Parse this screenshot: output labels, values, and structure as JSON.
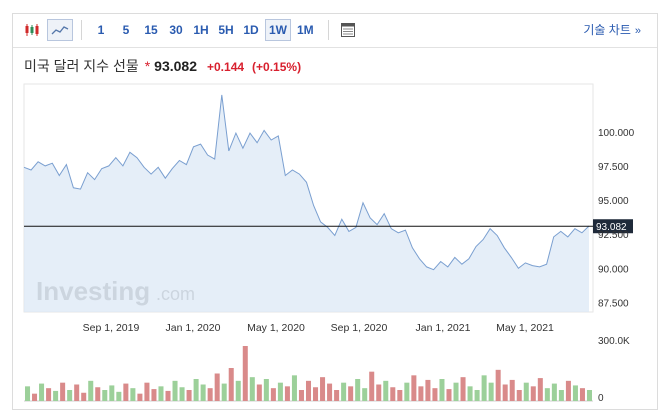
{
  "toolbar": {
    "intervals": [
      {
        "label": "1",
        "active": false
      },
      {
        "label": "5",
        "active": false
      },
      {
        "label": "15",
        "active": false
      },
      {
        "label": "30",
        "active": false
      },
      {
        "label": "1H",
        "active": false
      },
      {
        "label": "5H",
        "active": false
      },
      {
        "label": "1D",
        "active": false
      },
      {
        "label": "1W",
        "active": true
      },
      {
        "label": "1M",
        "active": false
      }
    ],
    "technical_chart_label": "기술 차트",
    "candlestick_icon": "candlestick-icon",
    "line_icon": "line-chart-icon",
    "table_icon": "table-icon"
  },
  "quote": {
    "name": "미국 달러 지수 선물",
    "price": "93.082",
    "change": "+0.144",
    "change_pct": "(+0.15%)",
    "change_color": "#d8202e"
  },
  "watermark": {
    "brand": "Investing",
    "suffix": ".com"
  },
  "chart_data": {
    "type": "area",
    "x_tick_labels": [
      "Sep 1, 2019",
      "Jan 1, 2020",
      "May 1, 2020",
      "Sep 1, 2020",
      "Jan 1, 2021",
      "May 1, 2021"
    ],
    "y_tick_labels": [
      "100.000",
      "97.500",
      "95.000",
      "92.500",
      "90.000",
      "87.500"
    ],
    "y_ticks": [
      100,
      97.5,
      95,
      92.5,
      90,
      87.5
    ],
    "ylim": [
      86.8,
      103.5
    ],
    "current_price_label": "93.082",
    "current_price": 93.082,
    "line_color": "#7a9fd0",
    "fill_color": "#dce8f5",
    "series": [
      {
        "values": [
          97.4,
          97.2,
          97.8,
          97.5,
          97.7,
          96.8,
          97.6,
          95.9,
          95.8,
          97.0,
          96.5,
          97.3,
          97.5,
          98.1,
          97.5,
          98.5,
          98.1,
          97.4,
          96.9,
          97.4,
          96.6,
          97.3,
          97.9,
          97.6,
          98.9,
          99.1,
          98.3,
          98.0,
          102.7,
          98.6,
          99.9,
          98.8,
          99.9,
          99.2,
          100.1,
          99.4,
          99.7,
          96.8,
          97.2,
          96.9,
          96.3,
          94.6,
          93.4,
          93.0,
          92.4,
          93.6,
          92.7,
          93.0,
          94.8,
          93.7,
          93.2,
          94.0,
          92.9,
          92.6,
          92.8,
          91.5,
          90.7,
          90.1,
          89.9,
          90.5,
          90.1,
          90.8,
          90.3,
          90.7,
          91.6,
          92.1,
          92.9,
          92.4,
          91.5,
          90.8,
          90.0,
          90.4,
          90.2,
          90.1,
          90.3,
          92.3,
          92.7,
          92.3,
          92.9,
          92.6,
          93.1
        ]
      }
    ],
    "volume_tick_labels": [
      "300.0K",
      "0"
    ],
    "volume_max": 300000,
    "volume_values": [
      80000,
      40000,
      95000,
      70000,
      55000,
      100000,
      60000,
      90000,
      45000,
      110000,
      75000,
      60000,
      85000,
      50000,
      95000,
      70000,
      40000,
      100000,
      65000,
      80000,
      55000,
      110000,
      75000,
      60000,
      120000,
      90000,
      70000,
      150000,
      95000,
      180000,
      110000,
      300000,
      130000,
      90000,
      120000,
      70000,
      100000,
      80000,
      140000,
      60000,
      110000,
      75000,
      130000,
      95000,
      60000,
      100000,
      80000,
      120000,
      70000,
      160000,
      90000,
      110000,
      75000,
      60000,
      100000,
      140000,
      80000,
      115000,
      70000,
      120000,
      65000,
      100000,
      130000,
      80000,
      60000,
      140000,
      100000,
      170000,
      90000,
      115000,
      60000,
      100000,
      80000,
      125000,
      70000,
      95000,
      60000,
      110000,
      85000,
      70000,
      60000
    ],
    "volume_colors": {
      "up": "#9cd09a",
      "down": "#d98a8a"
    }
  }
}
